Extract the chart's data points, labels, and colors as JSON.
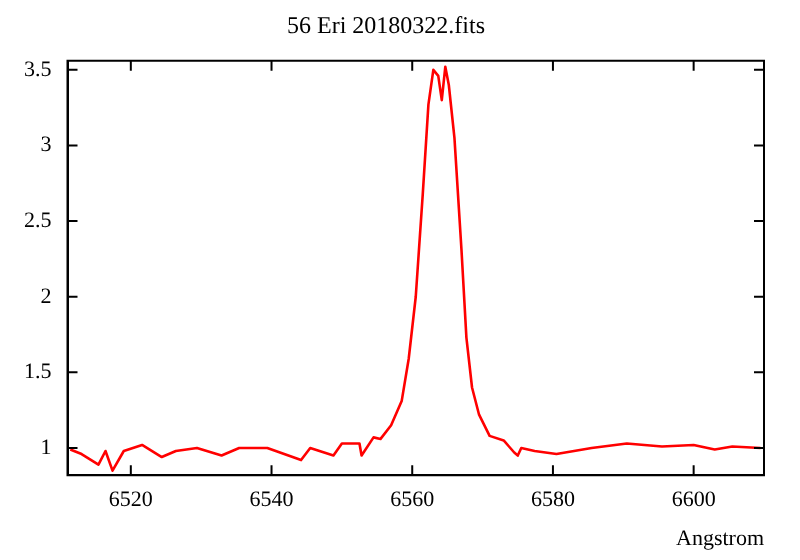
{
  "chart_data": {
    "type": "line",
    "title": "56 Eri 20180322.fits",
    "xlabel": "Angstrom",
    "x": [
      6511.4,
      6513,
      6515.4,
      6516.4,
      6517.4,
      6519,
      6521.6,
      6524.4,
      6526.4,
      6529.4,
      6532.9,
      6535.4,
      6539.4,
      6544.2,
      6545.5,
      6548.8,
      6550,
      6552.5,
      6552.8,
      6554.5,
      6555.5,
      6557,
      6558.5,
      6559.5,
      6560.5,
      6561.5,
      6562.3,
      6563,
      6563.7,
      6564.2,
      6564.7,
      6565.2,
      6566,
      6567,
      6567.7,
      6568.5,
      6569.5,
      6571,
      6573,
      6574.5,
      6575,
      6575.5,
      6577.4,
      6580.5,
      6585.5,
      6590.5,
      6595.5,
      6600,
      6603,
      6605.5,
      6609.5
    ],
    "series": [
      {
        "color": "#ff0000",
        "values": [
          0.99,
          0.96,
          0.89,
          0.98,
          0.85,
          0.98,
          1.02,
          0.94,
          0.98,
          1.0,
          0.95,
          1.0,
          1.0,
          0.92,
          1.0,
          0.95,
          1.03,
          1.03,
          0.95,
          1.07,
          1.06,
          1.15,
          1.31,
          1.59,
          2.0,
          2.68,
          3.27,
          3.5,
          3.46,
          3.3,
          3.52,
          3.4,
          3.05,
          2.31,
          1.73,
          1.4,
          1.22,
          1.08,
          1.05,
          0.97,
          0.95,
          1.0,
          0.98,
          0.96,
          1.0,
          1.03,
          1.01,
          1.02,
          0.99,
          1.01,
          1.0
        ]
      }
    ],
    "xlim": [
      6511,
      6610
    ],
    "xticks": [
      6520,
      6540,
      6560,
      6580,
      6600
    ],
    "ylim": [
      0.82,
      3.56
    ],
    "yticks": [
      1,
      1.5,
      2,
      2.5,
      3,
      3.5
    ],
    "grid": false,
    "legend": false,
    "marker": "none",
    "line_style": "solid"
  }
}
